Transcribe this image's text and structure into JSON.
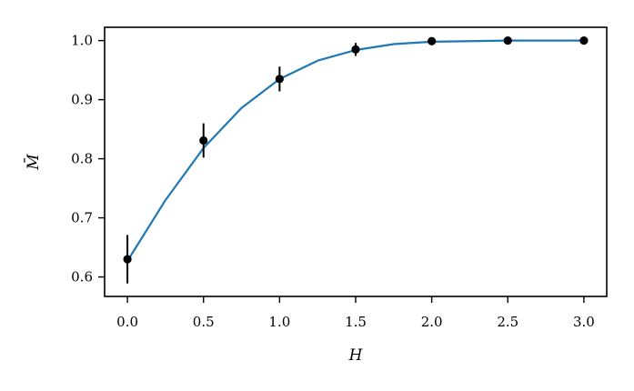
{
  "chart_data": {
    "type": "scatter",
    "title": "",
    "xlabel": "H",
    "ylabel": "M̄",
    "xlim": [
      -0.15,
      3.15
    ],
    "ylim": [
      0.567,
      1.0225
    ],
    "x_ticks": [
      0.0,
      0.5,
      1.0,
      1.5,
      2.0,
      2.5,
      3.0
    ],
    "x_tick_labels": [
      "0.0",
      "0.5",
      "1.0",
      "1.5",
      "2.0",
      "2.5",
      "3.0"
    ],
    "y_ticks": [
      0.6,
      0.7,
      0.8,
      0.9,
      1.0
    ],
    "y_tick_labels": [
      "0.6",
      "0.7",
      "0.8",
      "0.9",
      "1.0"
    ],
    "grid": false,
    "legend": "none",
    "series": [
      {
        "kind": "errorbar",
        "color": "#000000",
        "x": [
          0.0,
          0.5,
          1.0,
          1.5,
          2.0,
          2.5,
          3.0
        ],
        "y": [
          0.63,
          0.831,
          0.935,
          0.985,
          0.999,
          1.0,
          1.0
        ],
        "yerr": [
          0.041,
          0.029,
          0.021,
          0.011,
          0.002,
          0.001,
          0.001
        ]
      },
      {
        "kind": "line",
        "color": "#1f77b4",
        "x": [
          0.0,
          0.25,
          0.5,
          0.75,
          1.0,
          1.25,
          1.5,
          1.75,
          2.0,
          2.5,
          3.0
        ],
        "y": [
          0.627,
          0.73,
          0.818,
          0.886,
          0.935,
          0.966,
          0.984,
          0.994,
          0.998,
          1.0,
          1.0
        ]
      }
    ]
  }
}
